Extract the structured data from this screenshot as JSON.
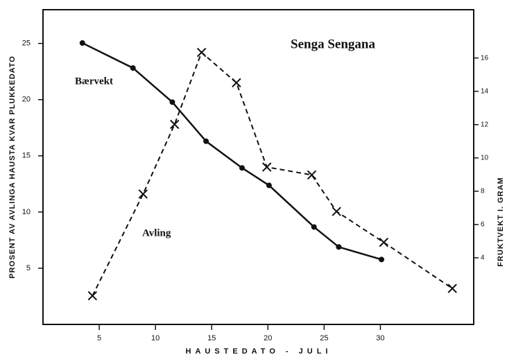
{
  "chart_data": {
    "type": "line",
    "title": "Senga Sengana",
    "xlabel": "HAUSTEDATO - JULI",
    "ylabel": "PROSENT AV AVLINGA HAUSTA KVAR PLUKKEDATO",
    "y2label": "FRUKTVEKT I. GRAM",
    "xlim": [
      0,
      38.3
    ],
    "xticks": [
      5,
      10,
      15,
      20,
      25,
      30
    ],
    "ylim": [
      0,
      28
    ],
    "yticks": [
      5,
      10,
      15,
      20,
      25
    ],
    "y2lim": [
      0,
      18.9
    ],
    "y2ticks": [
      4,
      6,
      8,
      10,
      12,
      14,
      16
    ],
    "series": [
      {
        "name": "Bærvekt",
        "color": "#111111",
        "axis": "y2",
        "marker": "dot",
        "dash": false,
        "x": [
          3.5,
          8.0,
          11.5,
          14.5,
          17.7,
          20.1,
          24.1,
          26.3,
          30.1
        ],
        "values": [
          16.9,
          15.4,
          13.35,
          11.0,
          9.4,
          8.35,
          5.85,
          4.65,
          3.9
        ]
      },
      {
        "name": "Avling",
        "color": "#111111",
        "axis": "y",
        "marker": "cross",
        "dash": true,
        "x": [
          4.4,
          8.9,
          11.7,
          14.1,
          17.2,
          19.9,
          23.9,
          26.1,
          30.3,
          36.4
        ],
        "values": [
          2.55,
          11.6,
          17.8,
          24.2,
          21.5,
          14.0,
          13.3,
          10.05,
          7.3,
          3.2
        ]
      }
    ]
  }
}
